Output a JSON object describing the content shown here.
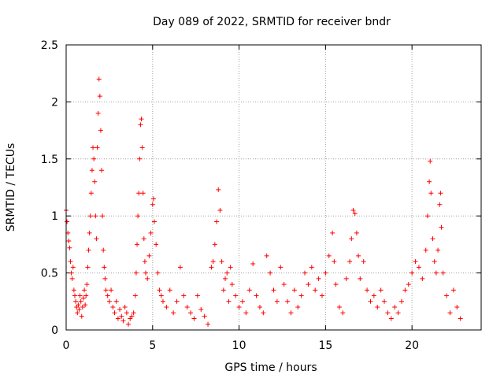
{
  "chart_data": {
    "type": "scatter",
    "title": "Day 089 of 2022, SRMTID for receiver bndr",
    "xlabel": "GPS time / hours",
    "ylabel": "SRMTID / TECUs",
    "xlim": [
      0,
      24
    ],
    "ylim": [
      0,
      2.5
    ],
    "x_ticks": [
      0,
      5,
      10,
      15,
      20
    ],
    "x_tick_labels": [
      "0",
      "5",
      "10",
      "15",
      "20"
    ],
    "y_ticks": [
      0,
      0.5,
      1,
      1.5,
      2,
      2.5
    ],
    "y_tick_labels": [
      "0",
      "0.5",
      "1",
      "1.5",
      "2",
      "2.5"
    ],
    "grid": true,
    "marker": "+",
    "series_color": "#ff0000",
    "series": [
      {
        "name": "SRMTID",
        "points": [
          [
            0.0,
            1.05
          ],
          [
            0.05,
            0.95
          ],
          [
            0.1,
            0.85
          ],
          [
            0.15,
            0.78
          ],
          [
            0.2,
            0.72
          ],
          [
            0.25,
            0.6
          ],
          [
            0.3,
            0.5
          ],
          [
            0.35,
            0.45
          ],
          [
            0.4,
            0.55
          ],
          [
            0.45,
            0.35
          ],
          [
            0.5,
            0.3
          ],
          [
            0.55,
            0.25
          ],
          [
            0.6,
            0.2
          ],
          [
            0.65,
            0.15
          ],
          [
            0.7,
            0.22
          ],
          [
            0.75,
            0.18
          ],
          [
            0.8,
            0.3
          ],
          [
            0.85,
            0.25
          ],
          [
            0.9,
            0.12
          ],
          [
            0.95,
            0.2
          ],
          [
            1.0,
            0.28
          ],
          [
            1.05,
            0.35
          ],
          [
            1.1,
            0.22
          ],
          [
            1.15,
            0.3
          ],
          [
            1.2,
            0.4
          ],
          [
            1.25,
            0.55
          ],
          [
            1.3,
            0.7
          ],
          [
            1.35,
            0.85
          ],
          [
            1.4,
            1.0
          ],
          [
            1.45,
            1.2
          ],
          [
            1.5,
            1.4
          ],
          [
            1.55,
            1.6
          ],
          [
            1.6,
            1.5
          ],
          [
            1.65,
            1.3
          ],
          [
            1.7,
            1.0
          ],
          [
            1.75,
            0.8
          ],
          [
            1.8,
            1.6
          ],
          [
            1.85,
            1.9
          ],
          [
            1.9,
            2.2
          ],
          [
            1.95,
            2.05
          ],
          [
            2.0,
            1.75
          ],
          [
            2.05,
            1.4
          ],
          [
            2.1,
            1.0
          ],
          [
            2.15,
            0.7
          ],
          [
            2.2,
            0.55
          ],
          [
            2.25,
            0.45
          ],
          [
            2.3,
            0.35
          ],
          [
            2.4,
            0.3
          ],
          [
            2.5,
            0.25
          ],
          [
            2.6,
            0.35
          ],
          [
            2.7,
            0.2
          ],
          [
            2.8,
            0.15
          ],
          [
            2.9,
            0.25
          ],
          [
            3.0,
            0.1
          ],
          [
            3.1,
            0.18
          ],
          [
            3.2,
            0.12
          ],
          [
            3.3,
            0.08
          ],
          [
            3.4,
            0.2
          ],
          [
            3.5,
            0.15
          ],
          [
            3.6,
            0.05
          ],
          [
            3.7,
            0.1
          ],
          [
            3.8,
            0.12
          ],
          [
            3.9,
            0.15
          ],
          [
            4.0,
            0.3
          ],
          [
            4.05,
            0.5
          ],
          [
            4.1,
            0.75
          ],
          [
            4.15,
            1.0
          ],
          [
            4.2,
            1.2
          ],
          [
            4.25,
            1.5
          ],
          [
            4.3,
            1.8
          ],
          [
            4.35,
            1.85
          ],
          [
            4.4,
            1.6
          ],
          [
            4.45,
            1.2
          ],
          [
            4.5,
            0.8
          ],
          [
            4.55,
            0.6
          ],
          [
            4.6,
            0.5
          ],
          [
            4.7,
            0.45
          ],
          [
            4.8,
            0.65
          ],
          [
            4.9,
            0.85
          ],
          [
            5.0,
            1.1
          ],
          [
            5.05,
            1.15
          ],
          [
            5.1,
            0.95
          ],
          [
            5.2,
            0.75
          ],
          [
            5.3,
            0.5
          ],
          [
            5.4,
            0.35
          ],
          [
            5.5,
            0.3
          ],
          [
            5.6,
            0.25
          ],
          [
            5.8,
            0.2
          ],
          [
            6.0,
            0.35
          ],
          [
            6.2,
            0.15
          ],
          [
            6.4,
            0.25
          ],
          [
            6.6,
            0.55
          ],
          [
            6.8,
            0.3
          ],
          [
            7.0,
            0.2
          ],
          [
            7.2,
            0.15
          ],
          [
            7.4,
            0.1
          ],
          [
            7.6,
            0.3
          ],
          [
            7.8,
            0.18
          ],
          [
            8.0,
            0.12
          ],
          [
            8.2,
            0.05
          ],
          [
            8.4,
            0.55
          ],
          [
            8.5,
            0.6
          ],
          [
            8.6,
            0.75
          ],
          [
            8.7,
            0.95
          ],
          [
            8.8,
            1.23
          ],
          [
            8.9,
            1.05
          ],
          [
            9.0,
            0.6
          ],
          [
            9.1,
            0.35
          ],
          [
            9.2,
            0.45
          ],
          [
            9.3,
            0.5
          ],
          [
            9.4,
            0.25
          ],
          [
            9.5,
            0.55
          ],
          [
            9.6,
            0.4
          ],
          [
            9.8,
            0.3
          ],
          [
            10.0,
            0.2
          ],
          [
            10.2,
            0.25
          ],
          [
            10.4,
            0.15
          ],
          [
            10.6,
            0.35
          ],
          [
            10.8,
            0.58
          ],
          [
            11.0,
            0.3
          ],
          [
            11.2,
            0.2
          ],
          [
            11.4,
            0.15
          ],
          [
            11.6,
            0.65
          ],
          [
            11.8,
            0.5
          ],
          [
            12.0,
            0.35
          ],
          [
            12.2,
            0.25
          ],
          [
            12.4,
            0.55
          ],
          [
            12.6,
            0.4
          ],
          [
            12.8,
            0.25
          ],
          [
            13.0,
            0.15
          ],
          [
            13.2,
            0.35
          ],
          [
            13.4,
            0.2
          ],
          [
            13.6,
            0.3
          ],
          [
            13.8,
            0.5
          ],
          [
            14.0,
            0.4
          ],
          [
            14.2,
            0.55
          ],
          [
            14.4,
            0.35
          ],
          [
            14.6,
            0.45
          ],
          [
            14.8,
            0.3
          ],
          [
            15.0,
            0.5
          ],
          [
            15.2,
            0.65
          ],
          [
            15.4,
            0.85
          ],
          [
            15.5,
            0.6
          ],
          [
            15.6,
            0.4
          ],
          [
            15.8,
            0.2
          ],
          [
            16.0,
            0.15
          ],
          [
            16.2,
            0.45
          ],
          [
            16.4,
            0.6
          ],
          [
            16.5,
            0.8
          ],
          [
            16.6,
            1.05
          ],
          [
            16.7,
            1.02
          ],
          [
            16.8,
            0.85
          ],
          [
            16.9,
            0.65
          ],
          [
            17.0,
            0.45
          ],
          [
            17.2,
            0.6
          ],
          [
            17.4,
            0.35
          ],
          [
            17.6,
            0.25
          ],
          [
            17.8,
            0.3
          ],
          [
            18.0,
            0.2
          ],
          [
            18.2,
            0.35
          ],
          [
            18.4,
            0.25
          ],
          [
            18.6,
            0.15
          ],
          [
            18.8,
            0.1
          ],
          [
            19.0,
            0.2
          ],
          [
            19.2,
            0.15
          ],
          [
            19.4,
            0.25
          ],
          [
            19.6,
            0.35
          ],
          [
            19.8,
            0.4
          ],
          [
            20.0,
            0.5
          ],
          [
            20.2,
            0.6
          ],
          [
            20.4,
            0.55
          ],
          [
            20.6,
            0.45
          ],
          [
            20.8,
            0.7
          ],
          [
            20.9,
            1.0
          ],
          [
            21.0,
            1.3
          ],
          [
            21.05,
            1.48
          ],
          [
            21.1,
            1.2
          ],
          [
            21.2,
            0.8
          ],
          [
            21.3,
            0.6
          ],
          [
            21.4,
            0.5
          ],
          [
            21.5,
            0.7
          ],
          [
            21.6,
            1.1
          ],
          [
            21.65,
            1.2
          ],
          [
            21.7,
            0.9
          ],
          [
            21.8,
            0.5
          ],
          [
            22.0,
            0.3
          ],
          [
            22.2,
            0.15
          ],
          [
            22.4,
            0.35
          ],
          [
            22.6,
            0.2
          ],
          [
            22.8,
            0.1
          ]
        ]
      }
    ]
  }
}
